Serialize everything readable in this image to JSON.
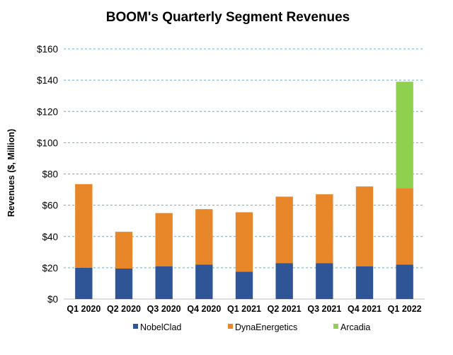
{
  "chart_data": {
    "type": "bar",
    "stacked": true,
    "title": "BOOM's Quarterly Segment Revenues",
    "xlabel": "",
    "ylabel": "Revenues ($, Million)",
    "ylim": [
      0,
      160
    ],
    "yticks": [
      0,
      20,
      40,
      60,
      80,
      100,
      120,
      140,
      160
    ],
    "ytick_labels": [
      "$0",
      "$20",
      "$40",
      "$60",
      "$80",
      "$100",
      "$120",
      "$140",
      "$160"
    ],
    "grid": true,
    "legend_position": "bottom",
    "categories": [
      "Q1 2020",
      "Q2 2020",
      "Q3 2020",
      "Q4 2020",
      "Q1 2021",
      "Q2 2021",
      "Q3 2021",
      "Q4 2021",
      "Q1 2022"
    ],
    "series": [
      {
        "name": "NobelClad",
        "color": "#2f5597",
        "values": [
          20,
          19.5,
          21,
          22,
          17.5,
          23,
          23,
          21,
          22
        ]
      },
      {
        "name": "DynaEnergetics",
        "color": "#e8862a",
        "values": [
          53.5,
          23.5,
          34,
          35.5,
          38,
          42.5,
          44,
          51,
          49
        ]
      },
      {
        "name": "Arcadia",
        "color": "#8fd14f",
        "values": [
          0,
          0,
          0,
          0,
          0,
          0,
          0,
          0,
          68
        ]
      }
    ]
  }
}
